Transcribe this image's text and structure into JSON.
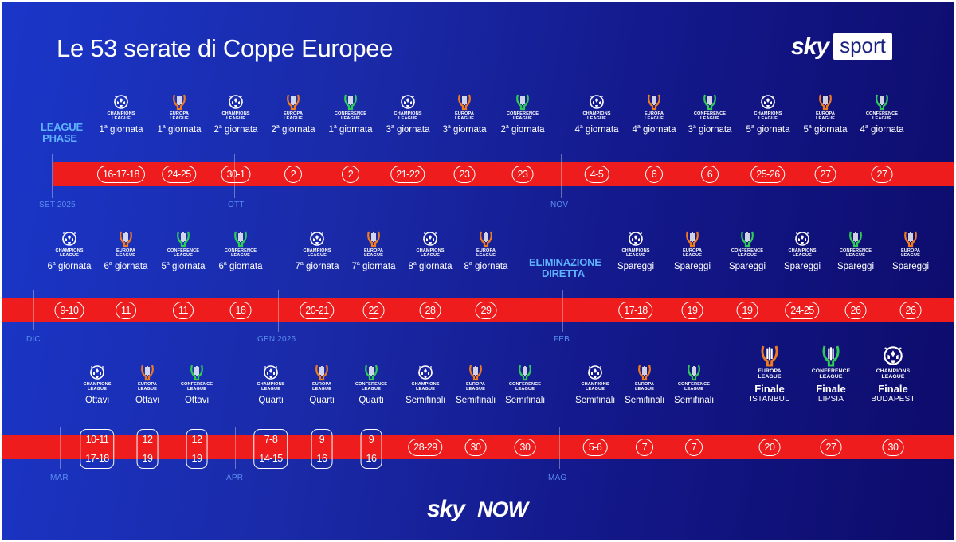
{
  "title": "Le 53 serate di Coppe Europee",
  "brand": {
    "sky": "sky",
    "sport": "sport"
  },
  "footer": {
    "sky": "sky",
    "now": "NOW"
  },
  "colors": {
    "stripe": "#ee1c1c",
    "champions": "#ffffff",
    "europa": "#f07a1e",
    "conference": "#2ecc55",
    "phase_label": "#5fb2ff"
  },
  "phases": {
    "league_phase": "LEAGUE\nPHASE",
    "knockout": "ELIMINAZIONE\nDIRETTA"
  },
  "months": [
    "SET 2025",
    "OTT",
    "NOV",
    "DIC",
    "GEN 2026",
    "FEB",
    "MAR",
    "APR",
    "MAG"
  ],
  "competitions": {
    "cl": {
      "text": "CHAMPIONS\nLEAGUE",
      "icon": "champions-league-icon"
    },
    "el": {
      "text": "EUROPA\nLEAGUE",
      "icon": "europa-league-icon"
    },
    "ecl": {
      "text": "CONFERENCE\nLEAGUE",
      "icon": "conference-league-icon"
    }
  },
  "row1": [
    {
      "comp": "cl",
      "round": "1ª giornata",
      "dates": "16-17-18"
    },
    {
      "comp": "el",
      "round": "1ª giornata",
      "dates": "24-25"
    },
    {
      "comp": "cl",
      "round": "2ª giornata",
      "dates": "30-1"
    },
    {
      "comp": "el",
      "round": "2ª giornata",
      "dates": "2"
    },
    {
      "comp": "ecl",
      "round": "1ª giornata",
      "dates": "2"
    },
    {
      "comp": "cl",
      "round": "3ª giornata",
      "dates": "21-22"
    },
    {
      "comp": "el",
      "round": "3ª giornata",
      "dates": "23"
    },
    {
      "comp": "ecl",
      "round": "2ª giornata",
      "dates": "23"
    },
    {
      "comp": "cl",
      "round": "4ª giornata",
      "dates": "4-5"
    },
    {
      "comp": "el",
      "round": "4ª giornata",
      "dates": "6"
    },
    {
      "comp": "ecl",
      "round": "3ª giornata",
      "dates": "6"
    },
    {
      "comp": "cl",
      "round": "5ª giornata",
      "dates": "25-26"
    },
    {
      "comp": "el",
      "round": "5ª giornata",
      "dates": "27"
    },
    {
      "comp": "ecl",
      "round": "4ª giornata",
      "dates": "27"
    }
  ],
  "row2": [
    {
      "comp": "cl",
      "round": "6ª giornata",
      "dates": "9-10"
    },
    {
      "comp": "el",
      "round": "6ª giornata",
      "dates": "11"
    },
    {
      "comp": "ecl",
      "round": "5ª giornata",
      "dates": "11"
    },
    {
      "comp": "ecl",
      "round": "6ª giornata",
      "dates": "18"
    },
    {
      "comp": "cl",
      "round": "7ª giornata",
      "dates": "20-21"
    },
    {
      "comp": "el",
      "round": "7ª giornata",
      "dates": "22"
    },
    {
      "comp": "cl",
      "round": "8ª giornata",
      "dates": "28"
    },
    {
      "comp": "el",
      "round": "8ª giornata",
      "dates": "29"
    },
    {
      "comp": "cl",
      "round": "Spareggi",
      "dates": "17-18"
    },
    {
      "comp": "el",
      "round": "Spareggi",
      "dates": "19"
    },
    {
      "comp": "ecl",
      "round": "Spareggi",
      "dates": "19"
    },
    {
      "comp": "cl",
      "round": "Spareggi",
      "dates": "24-25"
    },
    {
      "comp": "ecl",
      "round": "Spareggi",
      "dates": "26"
    },
    {
      "comp": "el",
      "round": "Spareggi",
      "dates": "26"
    }
  ],
  "row3": [
    {
      "comp": "cl",
      "round": "Ottavi",
      "dates": "10-11",
      "dates2": "17-18"
    },
    {
      "comp": "el",
      "round": "Ottavi",
      "dates": "12",
      "dates2": "19"
    },
    {
      "comp": "ecl",
      "round": "Ottavi",
      "dates": "12",
      "dates2": "19"
    },
    {
      "comp": "cl",
      "round": "Quarti",
      "dates": "7-8",
      "dates2": "14-15"
    },
    {
      "comp": "el",
      "round": "Quarti",
      "dates": "9",
      "dates2": "16"
    },
    {
      "comp": "ecl",
      "round": "Quarti",
      "dates": "9",
      "dates2": "16"
    },
    {
      "comp": "cl",
      "round": "Semifinali",
      "dates": "28-29"
    },
    {
      "comp": "el",
      "round": "Semifinali",
      "dates": "30"
    },
    {
      "comp": "ecl",
      "round": "Semifinali",
      "dates": "30"
    },
    {
      "comp": "cl",
      "round": "Semifinali",
      "dates": "5-6"
    },
    {
      "comp": "el",
      "round": "Semifinali",
      "dates": "7"
    },
    {
      "comp": "ecl",
      "round": "Semifinali",
      "dates": "7"
    }
  ],
  "finals": [
    {
      "comp": "el",
      "label": "Finale",
      "city": "ISTANBUL",
      "date": "20"
    },
    {
      "comp": "ecl",
      "label": "Finale",
      "city": "LIPSIA",
      "date": "27"
    },
    {
      "comp": "cl",
      "label": "Finale",
      "city": "BUDAPEST",
      "date": "30"
    }
  ]
}
